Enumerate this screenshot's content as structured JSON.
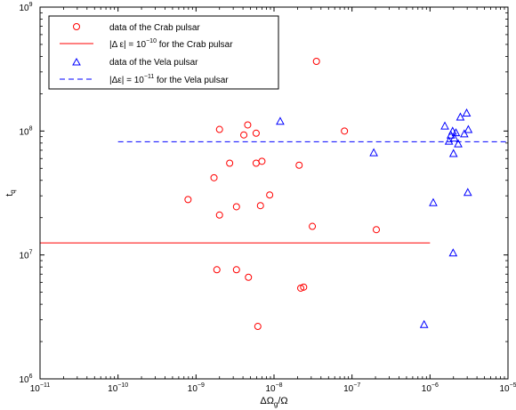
{
  "chart_data": {
    "type": "scatter",
    "x_scale": "log",
    "y_scale": "log",
    "xlim_exp": [
      -11,
      -5
    ],
    "ylim_exp": [
      6,
      9
    ],
    "x_tick_exps": [
      -11,
      -10,
      -9,
      -8,
      -7,
      -6,
      -5
    ],
    "y_tick_exps": [
      6,
      7,
      8,
      9
    ],
    "tick_base": "10",
    "xlabel": {
      "main": "ΔΩ",
      "sub": "g",
      "tail": "/Ω"
    },
    "ylabel": {
      "main": "t",
      "sub": "q"
    },
    "legend": {
      "placement": "top-left",
      "entries": [
        {
          "id": "crab_data",
          "marker": "circle",
          "color": "#ff0000",
          "text": "data of the Crab pulsar"
        },
        {
          "id": "crab_line",
          "marker": "solid-line",
          "color": "#ff0000",
          "pre": "|Δ ε| = 10",
          "sup": "−10",
          "post": " for the Crab pulsar"
        },
        {
          "id": "vela_data",
          "marker": "triangle",
          "color": "#0000ff",
          "text": "data of the Vela pulsar"
        },
        {
          "id": "vela_line",
          "marker": "dashed-line",
          "color": "#0000ff",
          "pre": "|Δε| = 10",
          "sup": "−11",
          "post": " for the Vela pulsar"
        }
      ]
    },
    "series": [
      {
        "marker": "circle",
        "color": "#ff0000",
        "points": [
          [
            7.9e-10,
            28000000.0
          ],
          [
            1.7e-09,
            42000000.0
          ],
          [
            2e-09,
            103000000.0
          ],
          [
            2e-09,
            21000000.0
          ],
          [
            1.85e-09,
            7600000.0
          ],
          [
            2.7e-09,
            55000000.0
          ],
          [
            3.3e-09,
            24500000.0
          ],
          [
            3.3e-09,
            7600000.0
          ],
          [
            4.1e-09,
            93000000.0
          ],
          [
            4.6e-09,
            112000000.0
          ],
          [
            4.7e-09,
            6600000.0
          ],
          [
            5.9e-09,
            96000000.0
          ],
          [
            5.9e-09,
            55000000.0
          ],
          [
            6.2e-09,
            2650000.0
          ],
          [
            6.7e-09,
            25000000.0
          ],
          [
            7e-09,
            57000000.0
          ],
          [
            8.8e-09,
            30500000.0
          ],
          [
            2.1e-08,
            53000000.0
          ],
          [
            2.2e-08,
            5400000.0
          ],
          [
            2.4e-08,
            5500000.0
          ],
          [
            3.1e-08,
            17000000.0
          ],
          [
            3.5e-08,
            365000000.0
          ],
          [
            8e-08,
            100000000.0
          ],
          [
            2.05e-07,
            16000000.0
          ]
        ]
      },
      {
        "marker": "triangle",
        "color": "#0000ff",
        "points": [
          [
            1.2e-08,
            120000000.0
          ],
          [
            1.9e-07,
            67000000.0
          ],
          [
            8.4e-07,
            2750000.0
          ],
          [
            1.1e-06,
            26500000.0
          ],
          [
            1.55e-06,
            110000000.0
          ],
          [
            1.75e-06,
            83000000.0
          ],
          [
            1.85e-06,
            93000000.0
          ],
          [
            1.95e-06,
            100000000.0
          ],
          [
            2e-06,
            66000000.0
          ],
          [
            2.05e-06,
            88000000.0
          ],
          [
            1.98e-06,
            10400000.0
          ],
          [
            2.15e-06,
            97000000.0
          ],
          [
            2.3e-06,
            79000000.0
          ],
          [
            2.45e-06,
            130000000.0
          ],
          [
            2.75e-06,
            95000000.0
          ],
          [
            2.95e-06,
            140000000.0
          ],
          [
            3.05e-06,
            32000000.0
          ],
          [
            3.1e-06,
            103000000.0
          ]
        ]
      }
    ],
    "lines": [
      {
        "style": "solid",
        "color": "#ff0000",
        "x": [
          1e-11,
          1e-06
        ],
        "y": 12500000.0
      },
      {
        "style": "dashed",
        "color": "#0000ff",
        "x": [
          1e-10,
          1e-05
        ],
        "y": 82000000.0
      }
    ]
  }
}
